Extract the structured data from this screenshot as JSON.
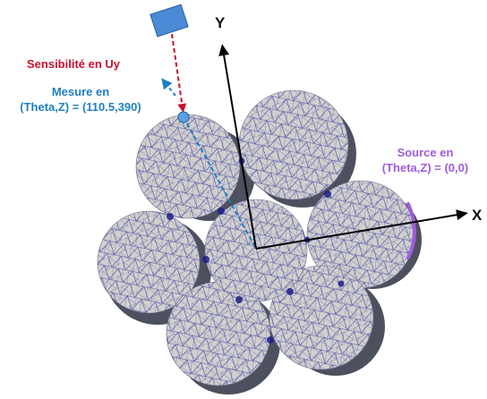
{
  "labels": {
    "sensitivity": "Sensibilité en Uy",
    "measure_line1": "Mesure en",
    "measure_line2": "(Theta,Z) = (110.5,390)",
    "source_line1": "Source en",
    "source_line2": "(Theta,Z) = (0,0)",
    "axis_x": "X",
    "axis_y": "Y"
  },
  "colors": {
    "sensitivity": "#c8102e",
    "measure": "#1f7fc4",
    "source": "#a05be0",
    "sensor_box": "#4a8ad6",
    "mesh_fill": "#d2d0cc",
    "mesh_line": "#2b2f9e",
    "wire_shadow": "#2e3242",
    "axis": "#000000"
  },
  "icons": {
    "sensor": "sensor-box-icon",
    "measure_point": "measure-point-icon"
  }
}
